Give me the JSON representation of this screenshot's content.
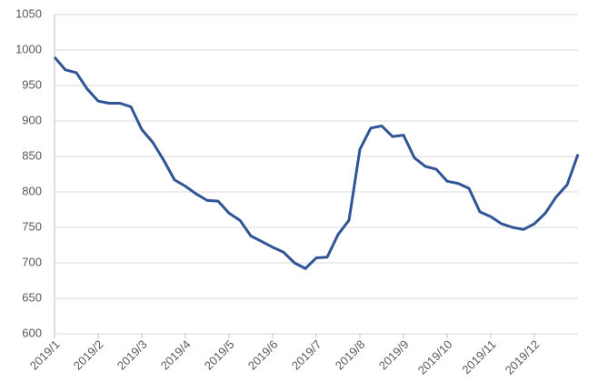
{
  "chart_data": {
    "type": "line",
    "categories": [
      "2019/1",
      null,
      null,
      null,
      "2019/2",
      null,
      null,
      null,
      "2019/3",
      null,
      null,
      null,
      "2019/4",
      null,
      null,
      null,
      "2019/5",
      null,
      null,
      null,
      "2019/6",
      null,
      null,
      null,
      "2019/7",
      null,
      null,
      null,
      "2019/8",
      null,
      null,
      null,
      "2019/9",
      null,
      null,
      null,
      "2019/10",
      null,
      null,
      null,
      "2019/11",
      null,
      null,
      null,
      "2019/12",
      null,
      null,
      null,
      null
    ],
    "series": [
      {
        "color": "#2f5597",
        "values": [
          990,
          972,
          968,
          945,
          928,
          925,
          925,
          920,
          888,
          870,
          845,
          817,
          808,
          797,
          788,
          787,
          770,
          760,
          738,
          730,
          722,
          715,
          700,
          692,
          707,
          708,
          740,
          760,
          860,
          890,
          893,
          878,
          880,
          848,
          836,
          832,
          815,
          812,
          805,
          772,
          765,
          755,
          750,
          747,
          755,
          770,
          793,
          810,
          853
        ]
      }
    ],
    "ylim": [
      600,
      1050
    ],
    "yticks": [
      600,
      650,
      700,
      750,
      800,
      850,
      900,
      950,
      1000,
      1050
    ],
    "grid": true
  }
}
